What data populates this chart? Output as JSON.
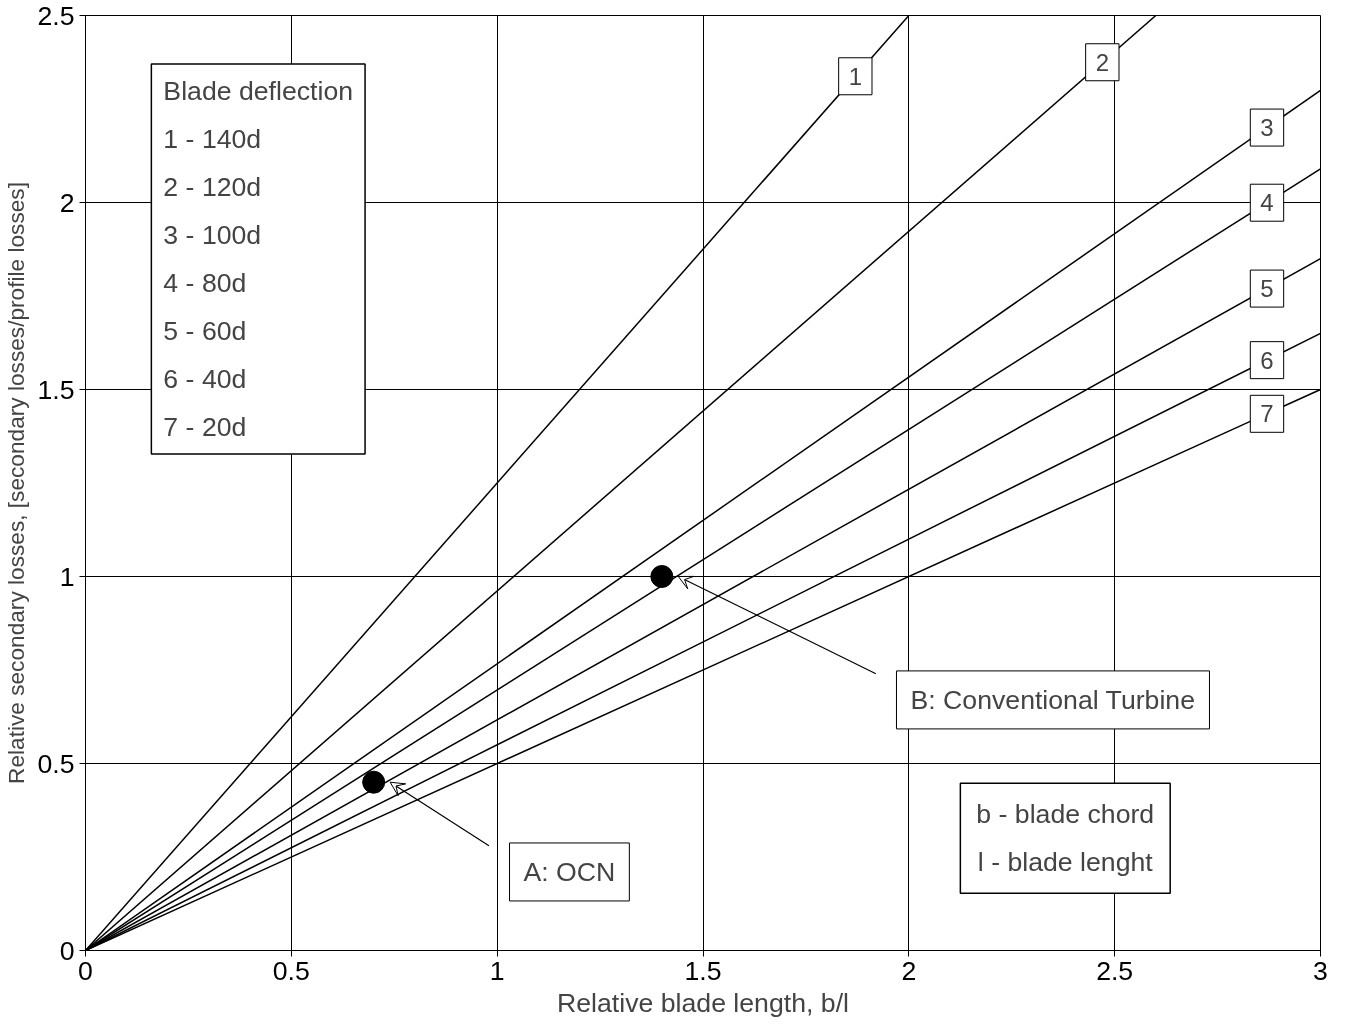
{
  "chart_data": {
    "type": "line",
    "xlabel": "Relative blade length, b/l",
    "ylabel": "Relative secondary losses, [secondary losses/profile losses]",
    "xlim": [
      0,
      3
    ],
    "ylim": [
      0,
      2.5
    ],
    "xticks": [
      0,
      0.5,
      1,
      1.5,
      2,
      2.5,
      3
    ],
    "yticks": [
      0,
      0.5,
      1,
      1.5,
      2,
      2.5
    ],
    "grid": true,
    "legend": "right",
    "series": [
      {
        "name": "1",
        "color": "#000000",
        "x": [
          0,
          2
        ],
        "values": [
          0,
          2.5
        ]
      },
      {
        "name": "2",
        "color": "#000000",
        "x": [
          0,
          2.6
        ],
        "values": [
          0,
          2.5
        ]
      },
      {
        "name": "3",
        "color": "#000000",
        "x": [
          0,
          3
        ],
        "values": [
          0,
          2.3
        ]
      },
      {
        "name": "4",
        "color": "#000000",
        "x": [
          0,
          3
        ],
        "values": [
          0,
          2.09
        ]
      },
      {
        "name": "5",
        "color": "#000000",
        "x": [
          0,
          3
        ],
        "values": [
          0,
          1.85
        ]
      },
      {
        "name": "6",
        "color": "#000000",
        "x": [
          0,
          3
        ],
        "values": [
          0,
          1.65
        ]
      },
      {
        "name": "7",
        "color": "#000000",
        "x": [
          0,
          3
        ],
        "values": [
          0,
          1.5
        ]
      },
      {
        "type": "scatter",
        "color": "#000000",
        "marker": "circle",
        "x": [
          0.7,
          1.4
        ],
        "values": [
          0.45,
          1.0
        ]
      }
    ],
    "annotations": [
      "Blade deflection",
      "1 - 140d",
      "2 - 120d",
      "3 - 100d",
      "4 - 80d",
      "5 - 60d",
      "6 - 40d",
      "7 - 20d",
      "A: OCN",
      "B: Conventional Turbine",
      "b - blade chord",
      "l - blade lenght"
    ]
  }
}
